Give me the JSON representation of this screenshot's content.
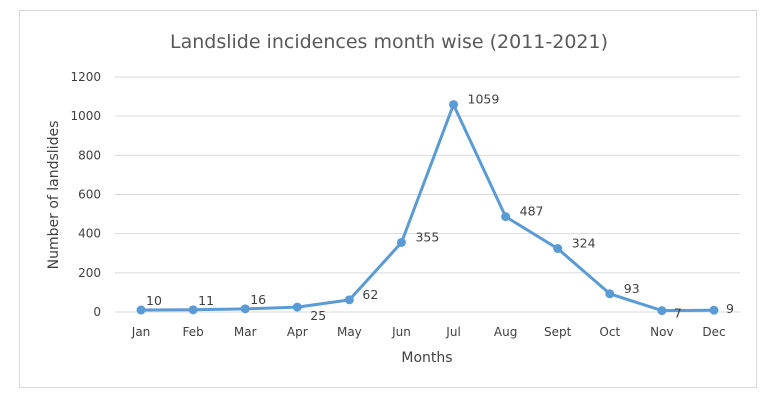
{
  "chart_data": {
    "type": "line",
    "title": "Landslide incidences month wise (2011-2021)",
    "xlabel": "Months",
    "ylabel": "Number of landslides",
    "categories": [
      "Jan",
      "Feb",
      "Mar",
      "Apr",
      "May",
      "Jun",
      "Jul",
      "Aug",
      "Sept",
      "Oct",
      "Nov",
      "Dec"
    ],
    "series": [
      {
        "values": [
          10,
          11,
          16,
          25,
          62,
          355,
          1059,
          487,
          324,
          93,
          7,
          9
        ]
      }
    ],
    "ylim": [
      0,
      1200
    ],
    "yticks": [
      "0",
      "200",
      "400",
      "600",
      "800",
      "1000",
      "1200"
    ],
    "grid": true,
    "legend": "none",
    "colors": {
      "line": "#5b9bd5",
      "grid": "#d9d9d9",
      "text": "#404040",
      "title": "#595959"
    }
  }
}
